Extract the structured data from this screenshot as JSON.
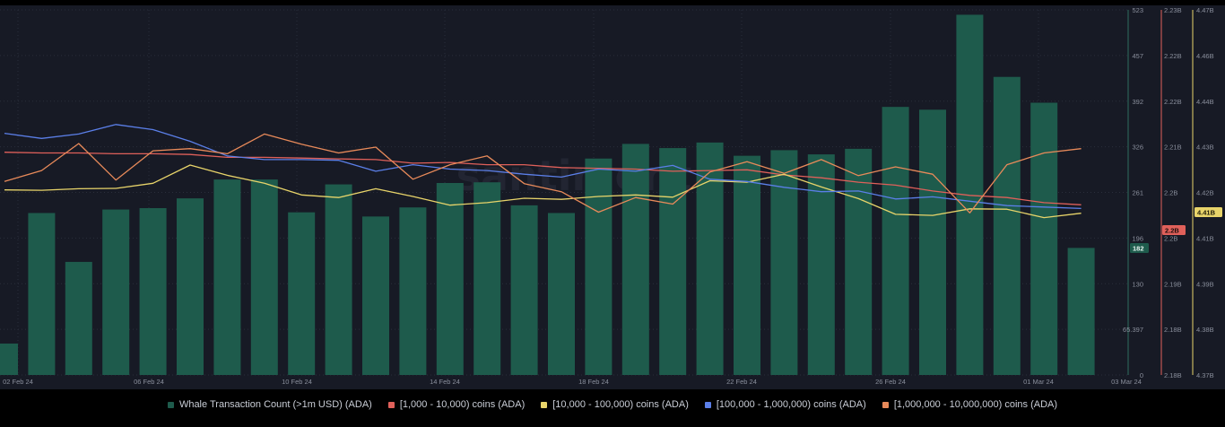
{
  "watermark": "santiment",
  "colors": {
    "background": "#171a25",
    "bars": "#1e5b4c",
    "bar_outline": "#256b59",
    "grid": "#2a2e3b",
    "axis_text": "#8a8f9c",
    "series_1k": "#e0605a",
    "series_10k": "#e8d46a",
    "series_100k": "#5b7fe8",
    "series_1m": "#e88a5a"
  },
  "badges": {
    "whale_count": "182",
    "coins_1k": "2.2B",
    "coins_10k": "4.41B"
  },
  "chart_data": {
    "type": "bar",
    "x_ticks": [
      "02 Feb 24",
      "06 Feb 24",
      "10 Feb 24",
      "14 Feb 24",
      "18 Feb 24",
      "22 Feb 24",
      "26 Feb 24",
      "01 Mar 24",
      "03 Mar 24"
    ],
    "y_axes": [
      {
        "name": "Whale Transaction Count (>1m USD) (ADA)",
        "ticks": [
          "523",
          "457",
          "392",
          "326",
          "261",
          "196",
          "130",
          "65.397",
          "0"
        ],
        "range": [
          0,
          523
        ]
      },
      {
        "name": "[1,000 - 10,000) coins (ADA)",
        "ticks": [
          "2.23B",
          "2.22B",
          "2.22B",
          "2.21B",
          "2.2B",
          "2.2B",
          "2.19B",
          "2.18B",
          "2.18B"
        ],
        "range": [
          2.18,
          2.23
        ]
      },
      {
        "name": "[10,000 - 100,000) coins (ADA)",
        "ticks": [
          "4.47B",
          "4.46B",
          "4.44B",
          "4.43B",
          "4.42B",
          "4.41B",
          "4.39B",
          "4.38B",
          "4.37B"
        ],
        "range": [
          4.37,
          4.47
        ]
      }
    ],
    "series": [
      {
        "name": "Whale Transaction Count (>1m USD) (ADA)",
        "kind": "bar",
        "axis": 0,
        "values": [
          45,
          232,
          162,
          237,
          239,
          253,
          280,
          280,
          233,
          273,
          227,
          240,
          275,
          276,
          243,
          232,
          310,
          331,
          325,
          333,
          314,
          322,
          316,
          324,
          384,
          380,
          516,
          427,
          390,
          182
        ]
      },
      {
        "name": "[1,000 - 10,000) coins (ADA)",
        "kind": "line",
        "axis": 1,
        "values": [
          2.2105,
          2.2104,
          2.2104,
          2.2103,
          2.2103,
          2.2102,
          2.2098,
          2.2098,
          2.2097,
          2.2096,
          2.2095,
          2.209,
          2.2091,
          2.2088,
          2.2088,
          2.2084,
          2.2083,
          2.2082,
          2.2079,
          2.208,
          2.2081,
          2.2074,
          2.207,
          2.2064,
          2.206,
          2.2052,
          2.2046,
          2.2043,
          2.2036,
          2.2033
        ]
      },
      {
        "name": "[10,000 - 100,000) coins (ADA)",
        "kind": "line",
        "axis": 2,
        "values": [
          4.4207,
          4.4206,
          4.421,
          4.4211,
          4.4225,
          4.4275,
          4.4247,
          4.4225,
          4.4193,
          4.4186,
          4.421,
          4.4189,
          4.4165,
          4.4172,
          4.4184,
          4.4181,
          4.4189,
          4.4193,
          4.4187,
          4.4232,
          4.4228,
          4.425,
          4.4215,
          4.4183,
          4.414,
          4.4137,
          4.4155,
          4.4154,
          4.4131,
          4.4143
        ]
      },
      {
        "name": "[100,000 - 1,000,000) coins (ADA)",
        "kind": "line",
        "axis": 1,
        "values": [
          2.2131,
          2.2124,
          2.213,
          2.2143,
          2.2136,
          2.212,
          2.21,
          2.2095,
          2.2095,
          2.2094,
          2.2079,
          2.2088,
          2.2082,
          2.208,
          2.2075,
          2.2071,
          2.2082,
          2.2079,
          2.2087,
          2.2068,
          2.2065,
          2.2057,
          2.2051,
          2.2052,
          2.2041,
          2.2044,
          2.2038,
          2.2032,
          2.203,
          2.2028
        ]
      },
      {
        "name": "[1,000,000 - 10,000,000) coins (ADA)",
        "kind": "line",
        "axis": 1,
        "values": [
          2.2065,
          2.208,
          2.2117,
          2.2067,
          2.2107,
          2.211,
          2.2103,
          2.213,
          2.2116,
          2.2104,
          2.2112,
          2.2068,
          2.2088,
          2.21,
          2.2062,
          2.2051,
          2.2023,
          2.2043,
          2.2034,
          2.2078,
          2.2092,
          2.2076,
          2.2095,
          2.2073,
          2.2085,
          2.2075,
          2.2022,
          2.2088,
          2.2104,
          2.211
        ]
      }
    ]
  }
}
